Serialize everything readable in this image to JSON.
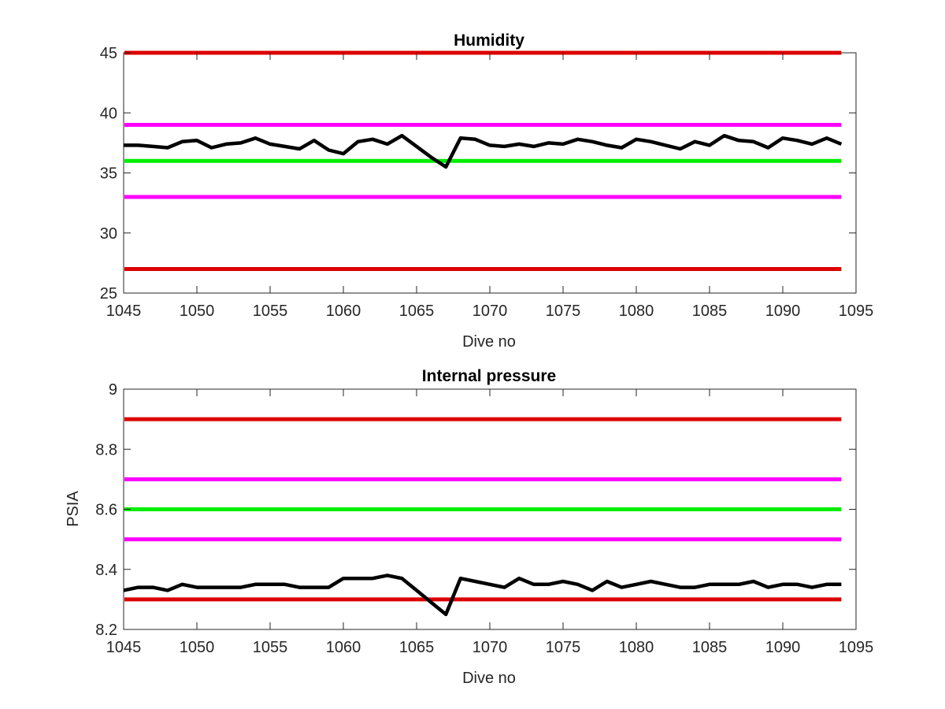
{
  "figure": {
    "charts": [
      {
        "id": "humidity",
        "type": "line",
        "title": "Humidity",
        "xlabel": "Dive no",
        "ylabel": "",
        "xlim": [
          1045,
          1095
        ],
        "ylim": [
          25,
          45
        ],
        "x_ticks": [
          1045,
          1050,
          1055,
          1060,
          1065,
          1070,
          1075,
          1080,
          1085,
          1090,
          1095
        ],
        "y_ticks": [
          25,
          30,
          35,
          40,
          45
        ],
        "y_tick_decimals": 0,
        "grid": false,
        "reference_lines": [
          {
            "value": 45,
            "color": "#dd0000"
          },
          {
            "value": 39,
            "color": "#ff00ff"
          },
          {
            "value": 36,
            "color": "#00ee00"
          },
          {
            "value": 33,
            "color": "#ff00ff"
          },
          {
            "value": 27,
            "color": "#dd0000"
          }
        ],
        "series": [
          {
            "color": "#000000",
            "x": [
              1045,
              1046,
              1047,
              1048,
              1049,
              1050,
              1051,
              1052,
              1053,
              1054,
              1055,
              1056,
              1057,
              1058,
              1059,
              1060,
              1061,
              1062,
              1063,
              1064,
              1065,
              1066,
              1067,
              1068,
              1069,
              1070,
              1071,
              1072,
              1073,
              1074,
              1075,
              1076,
              1077,
              1078,
              1079,
              1080,
              1081,
              1082,
              1083,
              1084,
              1085,
              1086,
              1087,
              1088,
              1089,
              1090,
              1091,
              1092,
              1093,
              1094
            ],
            "y": [
              37.3,
              37.3,
              37.2,
              37.1,
              37.6,
              37.7,
              37.1,
              37.4,
              37.5,
              37.9,
              37.4,
              37.2,
              37.0,
              37.7,
              36.9,
              36.6,
              37.6,
              37.8,
              37.4,
              38.1,
              37.2,
              36.3,
              35.5,
              37.9,
              37.8,
              37.3,
              37.2,
              37.4,
              37.2,
              37.5,
              37.4,
              37.8,
              37.6,
              37.3,
              37.1,
              37.8,
              37.6,
              37.3,
              37.0,
              37.6,
              37.3,
              38.1,
              37.7,
              37.6,
              37.1,
              37.9,
              37.7,
              37.4,
              37.9,
              37.4
            ]
          }
        ]
      },
      {
        "id": "internal-pressure",
        "type": "line",
        "title": "Internal pressure",
        "xlabel": "Dive no",
        "ylabel": "PSIA",
        "xlim": [
          1045,
          1095
        ],
        "ylim": [
          8.2,
          9.0
        ],
        "x_ticks": [
          1045,
          1050,
          1055,
          1060,
          1065,
          1070,
          1075,
          1080,
          1085,
          1090,
          1095
        ],
        "y_ticks": [
          8.2,
          8.4,
          8.6,
          8.8,
          9.0
        ],
        "y_tick_labels": [
          "8.2",
          "8.4",
          "8.6",
          "8.8",
          "9"
        ],
        "grid": false,
        "reference_lines": [
          {
            "value": 8.9,
            "color": "#dd0000"
          },
          {
            "value": 8.7,
            "color": "#ff00ff"
          },
          {
            "value": 8.6,
            "color": "#00ee00"
          },
          {
            "value": 8.5,
            "color": "#ff00ff"
          },
          {
            "value": 8.3,
            "color": "#dd0000"
          }
        ],
        "series": [
          {
            "color": "#000000",
            "x": [
              1045,
              1046,
              1047,
              1048,
              1049,
              1050,
              1051,
              1052,
              1053,
              1054,
              1055,
              1056,
              1057,
              1058,
              1059,
              1060,
              1061,
              1062,
              1063,
              1064,
              1065,
              1066,
              1067,
              1068,
              1069,
              1070,
              1071,
              1072,
              1073,
              1074,
              1075,
              1076,
              1077,
              1078,
              1079,
              1080,
              1081,
              1082,
              1083,
              1084,
              1085,
              1086,
              1087,
              1088,
              1089,
              1090,
              1091,
              1092,
              1093,
              1094
            ],
            "y": [
              8.33,
              8.34,
              8.34,
              8.33,
              8.35,
              8.34,
              8.34,
              8.34,
              8.34,
              8.35,
              8.35,
              8.35,
              8.34,
              8.34,
              8.34,
              8.37,
              8.37,
              8.37,
              8.38,
              8.37,
              8.33,
              8.29,
              8.25,
              8.37,
              8.36,
              8.35,
              8.34,
              8.37,
              8.35,
              8.35,
              8.36,
              8.35,
              8.33,
              8.36,
              8.34,
              8.35,
              8.36,
              8.35,
              8.34,
              8.34,
              8.35,
              8.35,
              8.35,
              8.36,
              8.34,
              8.35,
              8.35,
              8.34,
              8.35,
              8.35
            ]
          }
        ]
      }
    ]
  }
}
